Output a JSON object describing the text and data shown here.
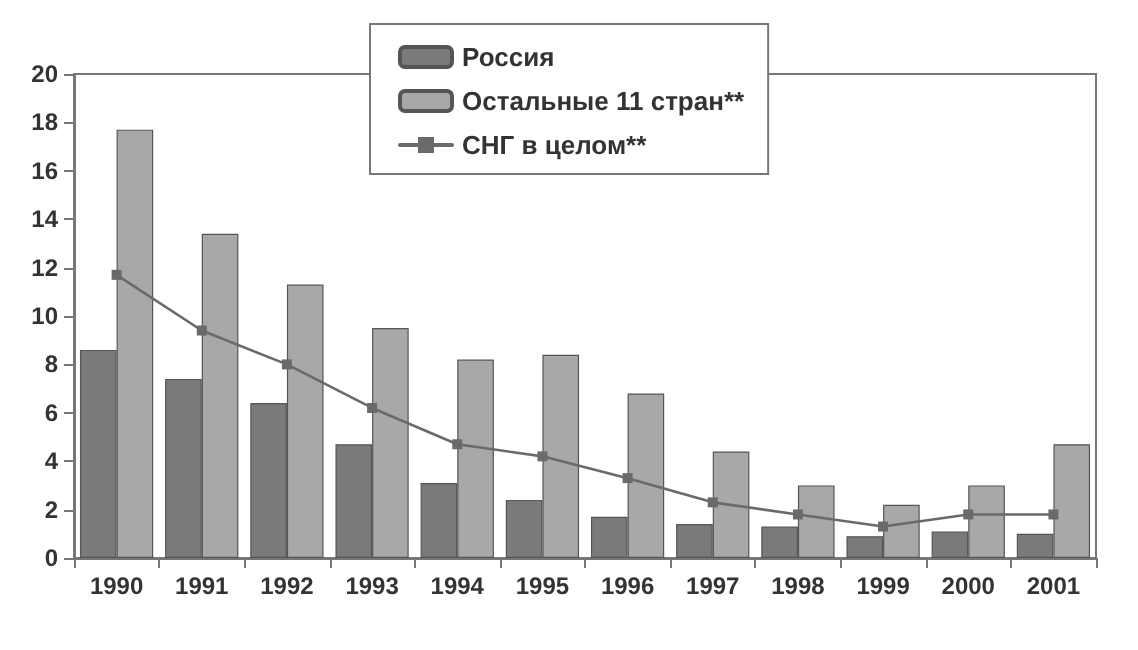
{
  "chart_data": {
    "type": "bar",
    "categories": [
      "1990",
      "1991",
      "1992",
      "1993",
      "1994",
      "1995",
      "1996",
      "1997",
      "1998",
      "1999",
      "2000",
      "2001"
    ],
    "series": [
      {
        "name": "Россия",
        "color": "#7a7a7a",
        "values": [
          8.6,
          7.4,
          6.4,
          4.7,
          3.1,
          2.4,
          1.7,
          1.4,
          1.3,
          0.9,
          1.1,
          1.0
        ]
      },
      {
        "name": "Остальные 11 стран**",
        "color": "#a8a8a8",
        "values": [
          17.7,
          13.4,
          11.3,
          9.5,
          8.2,
          8.4,
          6.8,
          4.4,
          3.0,
          2.2,
          3.0,
          4.7
        ]
      },
      {
        "name": "СНГ в целом**",
        "type": "line",
        "color": "#6a6a6a",
        "marker": "square",
        "values": [
          11.7,
          9.4,
          8.0,
          6.2,
          4.7,
          4.2,
          3.3,
          2.3,
          1.8,
          1.3,
          1.8,
          1.8
        ]
      }
    ],
    "ylim": [
      0,
      20
    ],
    "yticks": [
      0,
      2,
      4,
      6,
      8,
      10,
      12,
      14,
      16,
      18,
      20
    ],
    "grid": false,
    "legend": "top"
  }
}
